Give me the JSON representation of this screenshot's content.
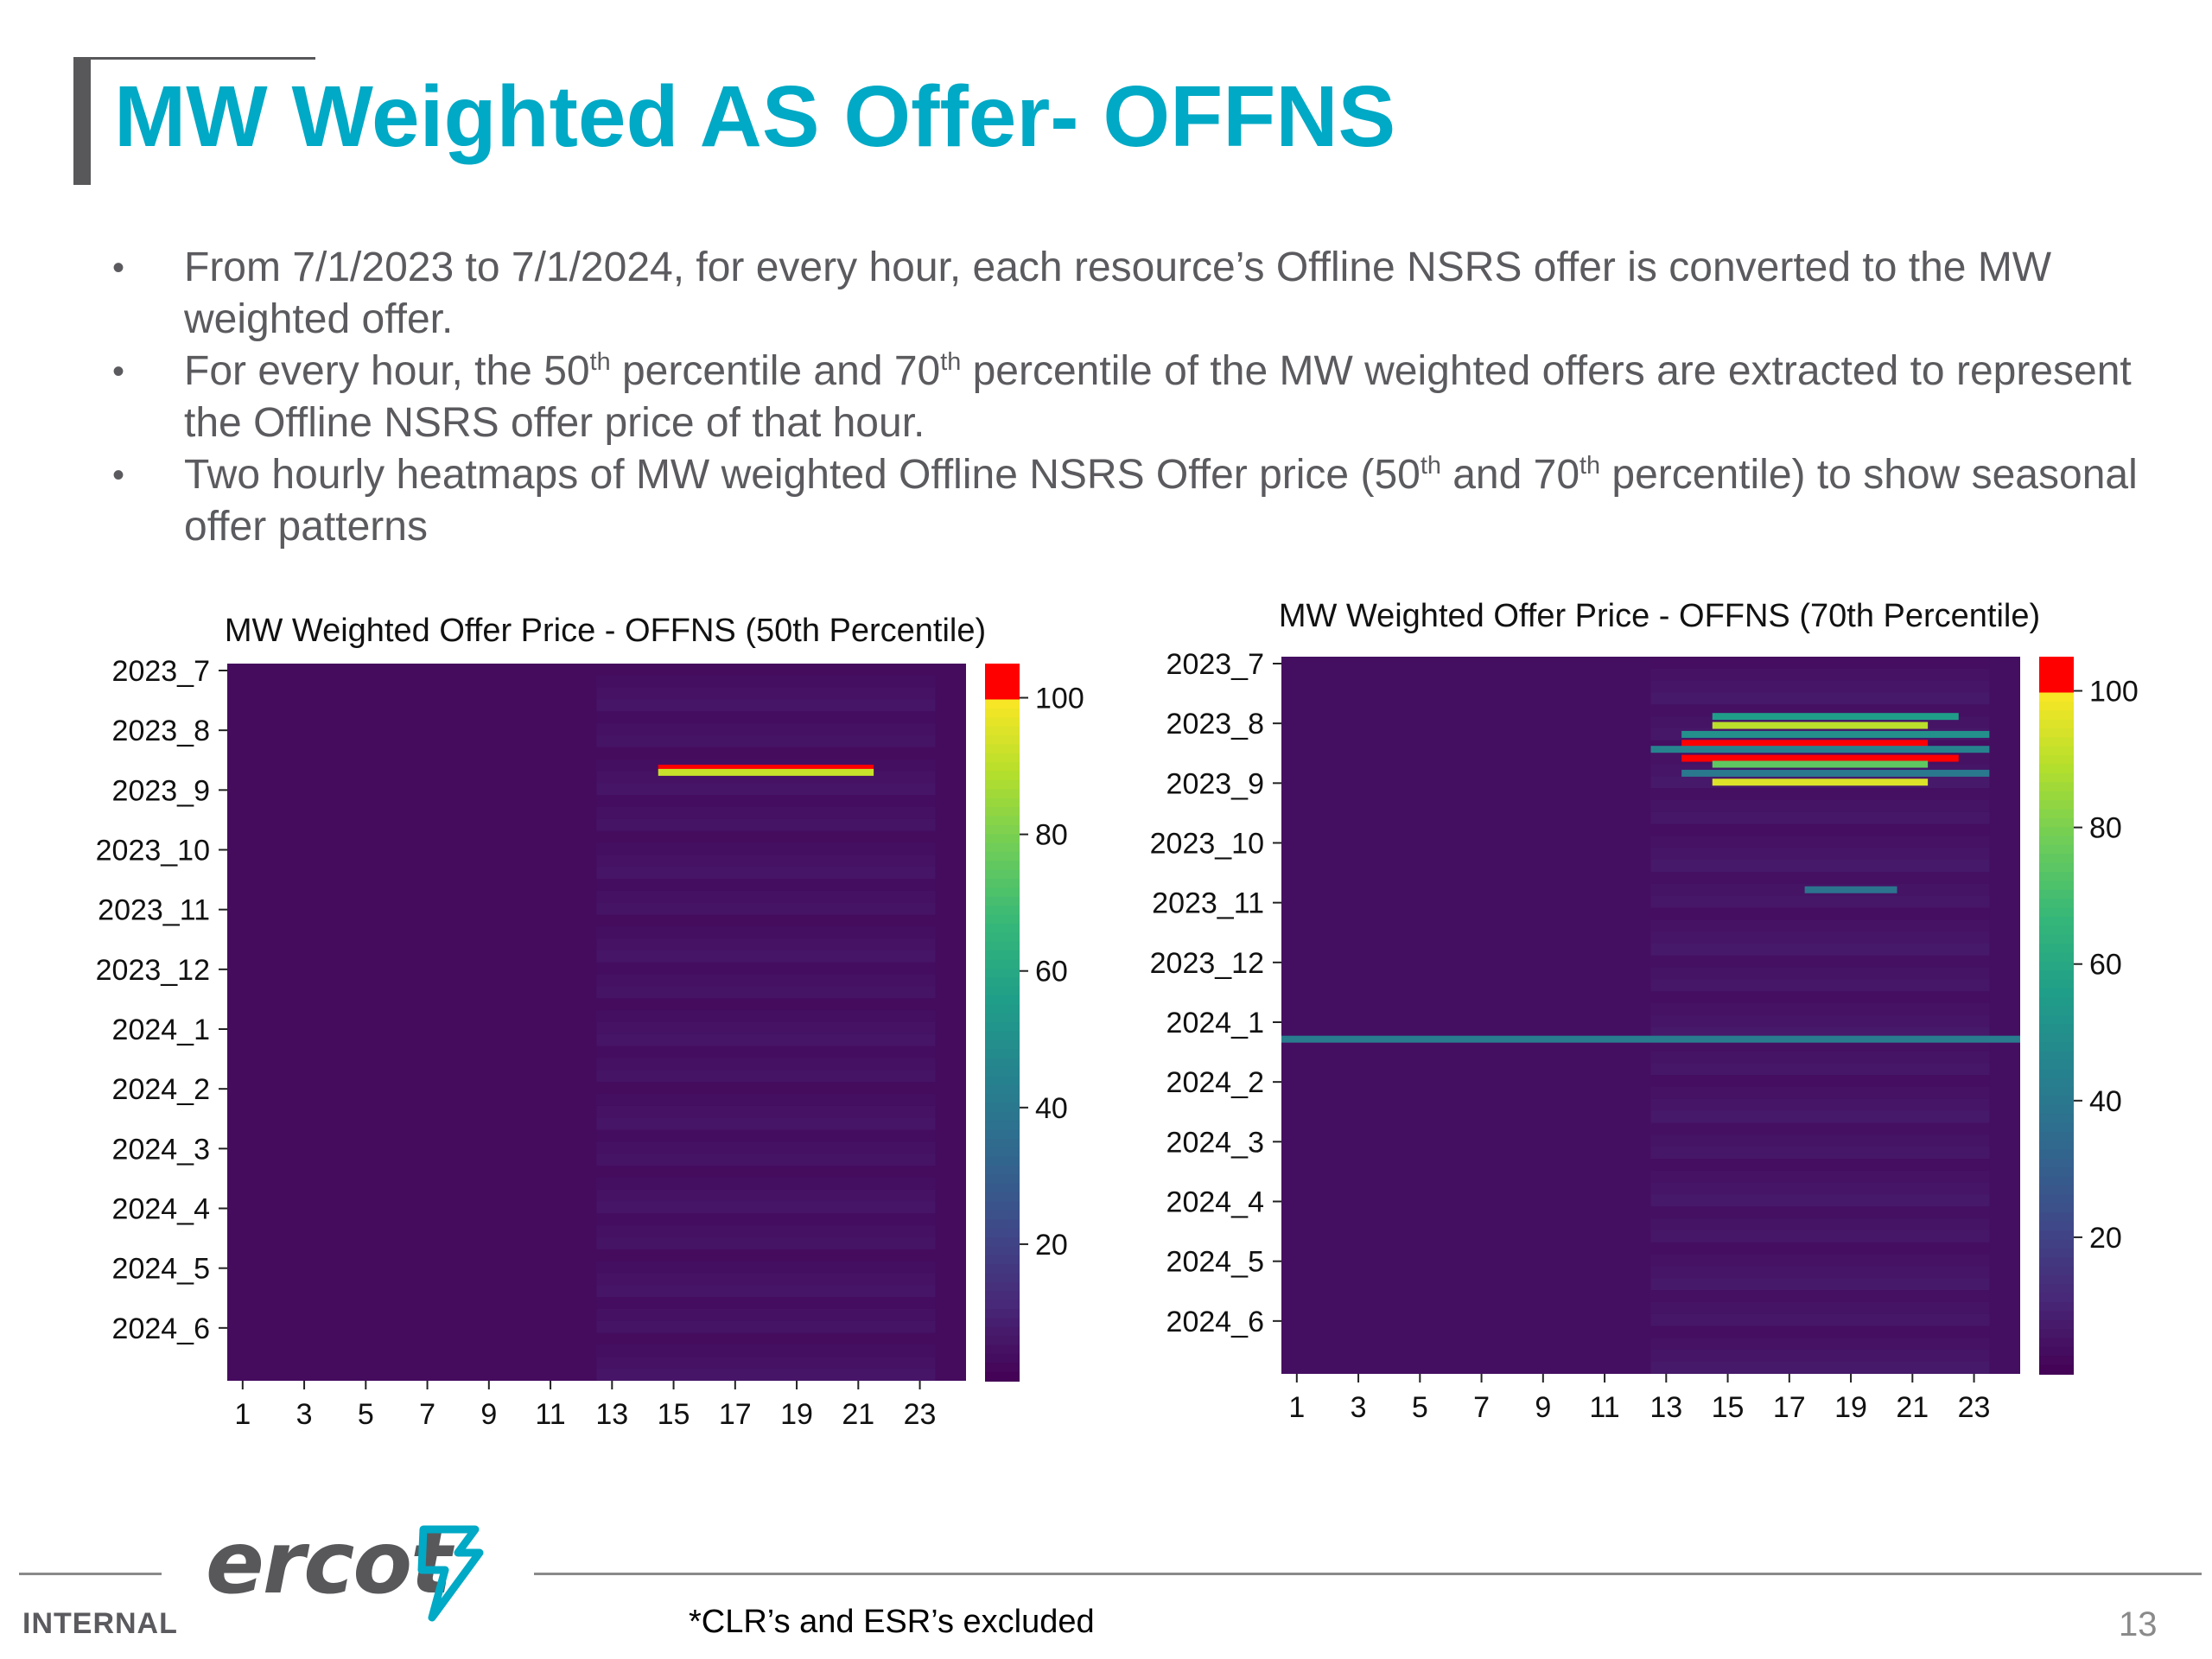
{
  "title": "MW Weighted AS Offer- OFFNS",
  "bullets": [
    {
      "pre": "From 7/1/2023 to 7/1/2024, for every hour, each resource’s Offline NSRS offer is converted to the MW weighted offer."
    },
    {
      "pre": "For every hour, the 50",
      "sup1": "th",
      "mid1": " percentile and 70",
      "sup2": "th",
      "post": " percentile of the MW weighted offers are extracted to represent the Offline NSRS offer price of that hour."
    },
    {
      "pre": "Two hourly heatmaps of MW weighted Offline NSRS Offer price (50",
      "sup1": "th",
      "mid1": " and 70",
      "sup2": "th",
      "post": " percentile) to show seasonal offer patterns"
    }
  ],
  "chart_data": [
    {
      "type": "heatmap",
      "title": "MW Weighted Offer Price - OFFNS (50th Percentile)",
      "x_ticks": [
        "1",
        "3",
        "5",
        "7",
        "9",
        "11",
        "13",
        "15",
        "17",
        "19",
        "21",
        "23"
      ],
      "y_ticks": [
        "2023_7",
        "2023_8",
        "2023_9",
        "2023_10",
        "2023_11",
        "2023_12",
        "2024_1",
        "2024_2",
        "2024_3",
        "2024_4",
        "2024_5",
        "2024_6"
      ],
      "x_range": [
        1,
        24
      ],
      "colorbar_ticks": [
        "20",
        "40",
        "60",
        "80",
        "100"
      ],
      "colorbar_range": [
        0,
        105
      ],
      "colormap": "viridis with red cap above 100",
      "background_value": 3,
      "features": [
        {
          "month_pos": 1.75,
          "hour_start": 15,
          "hour_end": 21,
          "value": 105
        },
        {
          "month_pos": 1.82,
          "hour_start": 15,
          "hour_end": 21,
          "value": 92
        }
      ]
    },
    {
      "type": "heatmap",
      "title": "MW Weighted Offer Price - OFFNS (70th Percentile)",
      "x_ticks": [
        "1",
        "3",
        "5",
        "7",
        "9",
        "11",
        "13",
        "15",
        "17",
        "19",
        "21",
        "23"
      ],
      "y_ticks": [
        "2023_7",
        "2023_8",
        "2023_9",
        "2023_10",
        "2023_11",
        "2023_12",
        "2024_1",
        "2024_2",
        "2024_3",
        "2024_4",
        "2024_5",
        "2024_6"
      ],
      "x_range": [
        1,
        24
      ],
      "colorbar_ticks": [
        "20",
        "40",
        "60",
        "80",
        "100"
      ],
      "colorbar_range": [
        0,
        105
      ],
      "colormap": "viridis with red cap above 100",
      "background_value": 4,
      "features": [
        {
          "month_pos": 1.0,
          "hour_start": 15,
          "hour_end": 22,
          "value": 55
        },
        {
          "month_pos": 1.15,
          "hour_start": 15,
          "hour_end": 21,
          "value": 90
        },
        {
          "month_pos": 1.3,
          "hour_start": 14,
          "hour_end": 23,
          "value": 50
        },
        {
          "month_pos": 1.45,
          "hour_start": 14,
          "hour_end": 21,
          "value": 105
        },
        {
          "month_pos": 1.55,
          "hour_start": 13,
          "hour_end": 23,
          "value": 45
        },
        {
          "month_pos": 1.7,
          "hour_start": 14,
          "hour_end": 22,
          "value": 105
        },
        {
          "month_pos": 1.8,
          "hour_start": 15,
          "hour_end": 21,
          "value": 75
        },
        {
          "month_pos": 1.95,
          "hour_start": 14,
          "hour_end": 23,
          "value": 40
        },
        {
          "month_pos": 2.1,
          "hour_start": 15,
          "hour_end": 21,
          "value": 95
        },
        {
          "month_pos": 6.4,
          "hour_start": 1,
          "hour_end": 24,
          "value": 42
        },
        {
          "month_pos": 3.9,
          "hour_start": 18,
          "hour_end": 20,
          "value": 38
        }
      ]
    }
  ],
  "footer": {
    "internal": "INTERNAL",
    "logo": "ercot",
    "footnote": "*CLR’s and ESR’s excluded",
    "page_number": "13"
  },
  "colors": {
    "title": "#00a9c5",
    "text": "#5b5b5f",
    "heatmap_cap": "#ff0000"
  }
}
